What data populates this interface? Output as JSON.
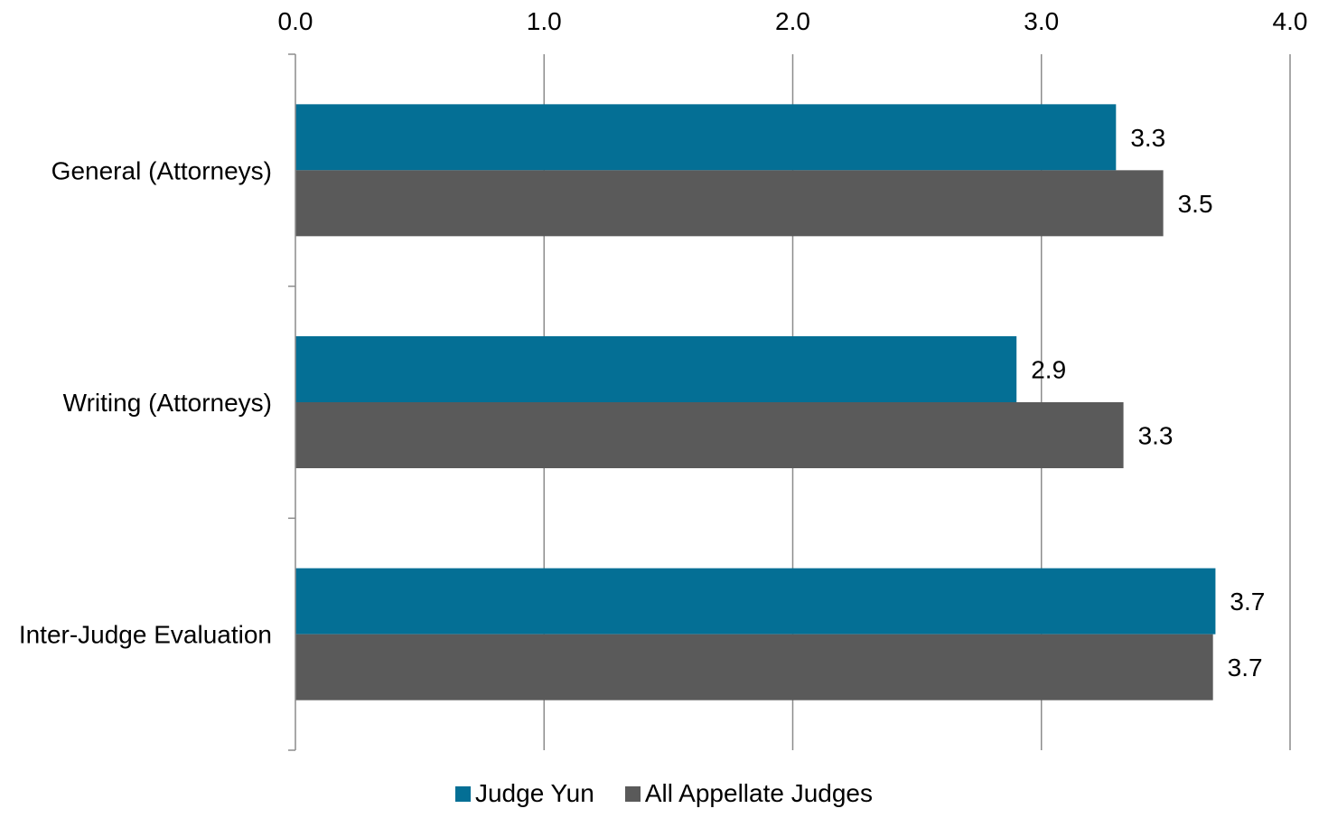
{
  "chart_data": {
    "type": "bar",
    "orientation": "horizontal",
    "categories": [
      "General (Attorneys)",
      "Writing (Attorneys)",
      "Inter-Judge Evaluation"
    ],
    "series": [
      {
        "name": "Judge Yun",
        "values": [
          3.3,
          2.9,
          3.7
        ],
        "labels": [
          "3.3",
          "2.9",
          "3.7"
        ],
        "color": "#046f95"
      },
      {
        "name": "All Appellate Judges",
        "values": [
          3.49,
          3.33,
          3.69
        ],
        "labels": [
          "3.5",
          "3.3",
          "3.7"
        ],
        "color": "#5a5a5a"
      }
    ],
    "xlim": [
      0,
      4
    ],
    "xticks": [
      0,
      1,
      2,
      3,
      4
    ],
    "xtick_labels": [
      "0.0",
      "1.0",
      "2.0",
      "3.0",
      "4.0"
    ],
    "xaxis_position": "top",
    "grid": true,
    "legend_position": "bottom"
  }
}
